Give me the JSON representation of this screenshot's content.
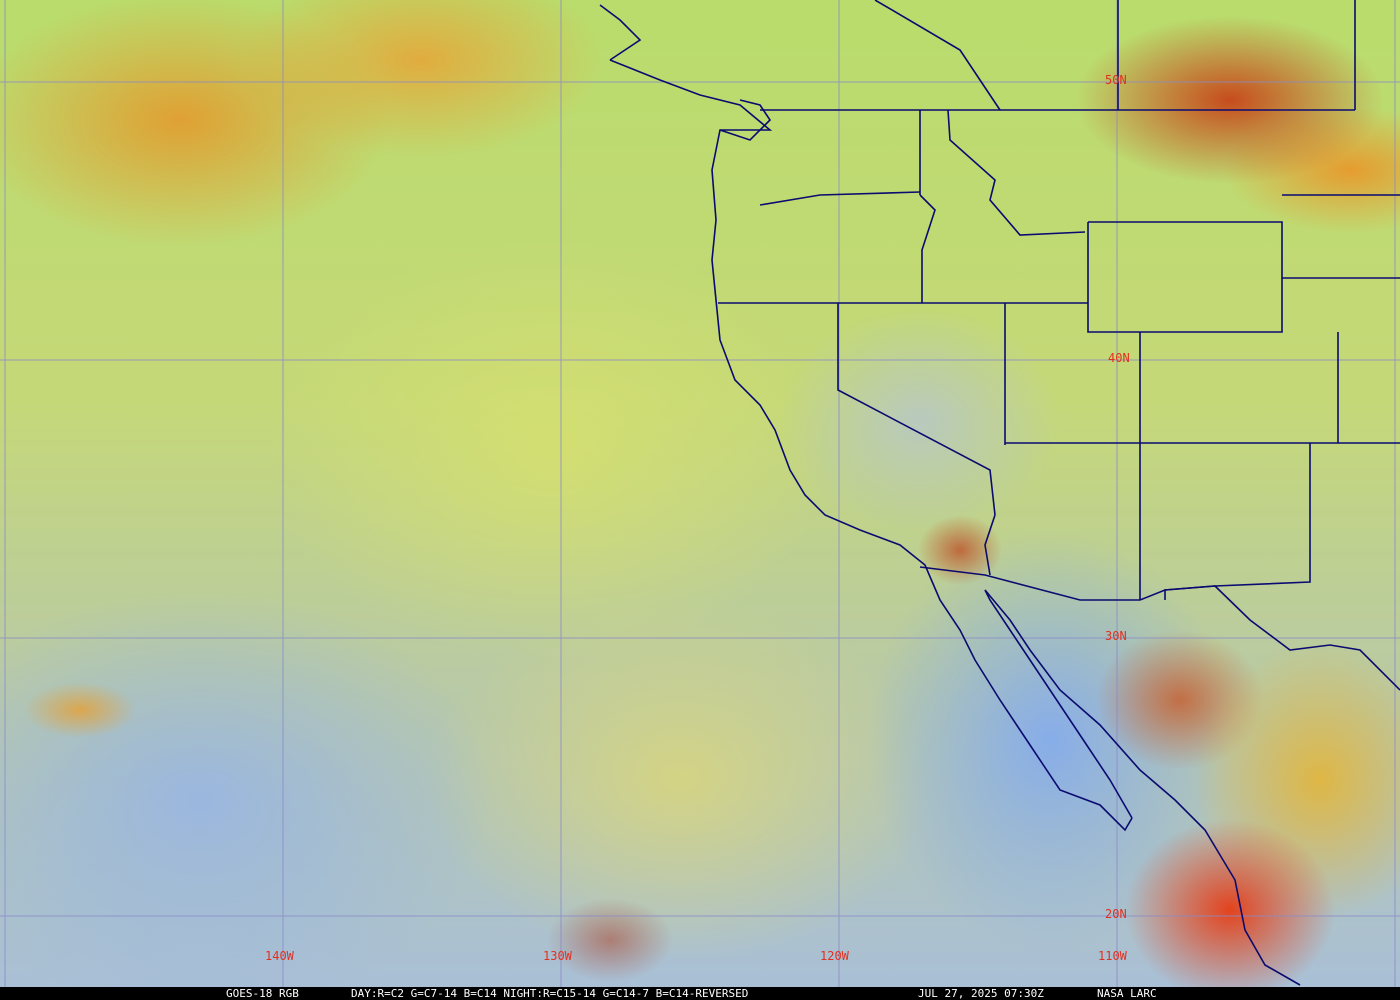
{
  "map": {
    "latitude_labels": [
      "50N",
      "40N",
      "30N",
      "20N"
    ],
    "longitude_labels": [
      "140W",
      "130W",
      "120W",
      "110W"
    ],
    "label_color": "#e03020",
    "gridline_color": "#8a8ac8",
    "border_color": "#0a0a70"
  },
  "caption": {
    "satellite": "GOES-18 RGB",
    "recipe": "DAY:R=C2 G=C7-14 B=C14 NIGHT:R=C15-14 G=C14-7 B=C14-REVERSED",
    "timestamp": "JUL 27, 2025 07:30Z",
    "source": "NASA LARC"
  }
}
